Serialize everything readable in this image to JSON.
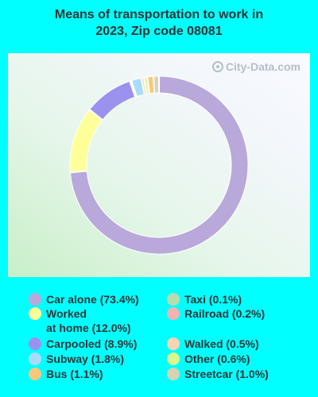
{
  "chart_data": {
    "type": "pie",
    "title_line1": "Means of transportation to work in",
    "title_line2": "2023, Zip code 08081",
    "watermark": "City-Data.com",
    "slices": [
      {
        "label": "Car alone (73.4%)",
        "label_line1": "Car alone (73.4%)",
        "value": 73.4,
        "color": "#b9a8da"
      },
      {
        "label": "Worked at home (12.0%)",
        "label_line1": "Worked",
        "label_line2": "at home (12.0%)",
        "value": 12.0,
        "color": "#ffff99"
      },
      {
        "label": "Carpooled (8.9%)",
        "label_line1": "Carpooled (8.9%)",
        "value": 8.9,
        "color": "#9a92ee"
      },
      {
        "label": "Taxi (0.1%)",
        "label_line1": "Taxi (0.1%)",
        "value": 0.1,
        "color": "#b8dcae"
      },
      {
        "label": "Railroad (0.2%)",
        "label_line1": "Railroad (0.2%)",
        "value": 0.2,
        "color": "#f3b3b3"
      },
      {
        "label": "Subway (1.8%)",
        "label_line1": "Subway (1.8%)",
        "value": 1.8,
        "color": "#a9dcfb"
      },
      {
        "label": "Walked (0.5%)",
        "label_line1": "Walked (0.5%)",
        "value": 0.5,
        "color": "#f9d5b1"
      },
      {
        "label": "Other (0.6%)",
        "label_line1": "Other (0.6%)",
        "value": 0.6,
        "color": "#d9f78c"
      },
      {
        "label": "Bus (1.1%)",
        "label_line1": "Bus (1.1%)",
        "value": 1.1,
        "color": "#f8c77d"
      },
      {
        "label": "Streetcar (1.0%)",
        "label_line1": "Streetcar (1.0%)",
        "value": 1.0,
        "color": "#d6d3b4"
      }
    ]
  }
}
